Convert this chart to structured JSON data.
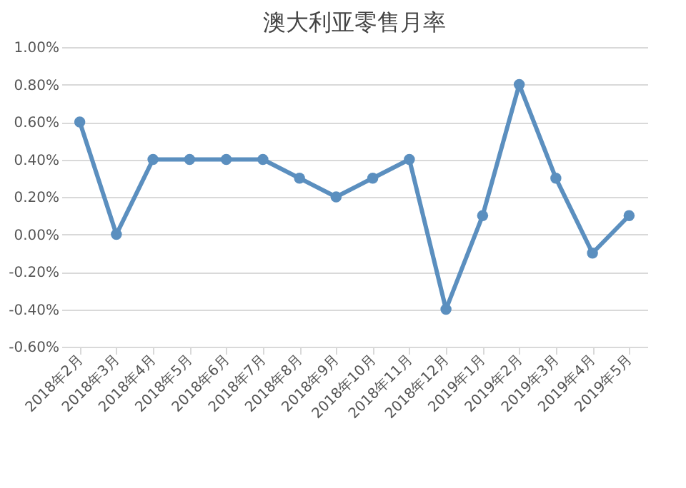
{
  "chart_data": {
    "type": "line",
    "title": "澳大利亚零售月率",
    "categories": [
      "2018年2月",
      "2018年3月",
      "2018年4月",
      "2018年5月",
      "2018年6月",
      "2018年7月",
      "2018年8月",
      "2018年9月",
      "2018年10月",
      "2018年11月",
      "2018年12月",
      "2019年1月",
      "2019年2月",
      "2019年3月",
      "2019年4月",
      "2019年5月"
    ],
    "series": [
      {
        "color": "#5b8fbf",
        "values": [
          0.6,
          0.0,
          0.4,
          0.4,
          0.4,
          0.4,
          0.3,
          0.2,
          0.3,
          0.4,
          -0.4,
          0.1,
          0.8,
          0.3,
          -0.1,
          0.1
        ]
      }
    ],
    "ylim": [
      -0.6,
      1.0
    ],
    "yticks": [
      {
        "value": -0.6,
        "label": "-0.60%"
      },
      {
        "value": -0.4,
        "label": "-0.40%"
      },
      {
        "value": -0.2,
        "label": "-0.20%"
      },
      {
        "value": 0.0,
        "label": "0.00%"
      },
      {
        "value": 0.2,
        "label": "0.20%"
      },
      {
        "value": 0.4,
        "label": "0.40%"
      },
      {
        "value": 0.6,
        "label": "0.60%"
      },
      {
        "value": 0.8,
        "label": "0.80%"
      },
      {
        "value": 1.0,
        "label": "1.00%"
      }
    ],
    "grid": "y",
    "marker": "circle",
    "line_style": "solid"
  }
}
